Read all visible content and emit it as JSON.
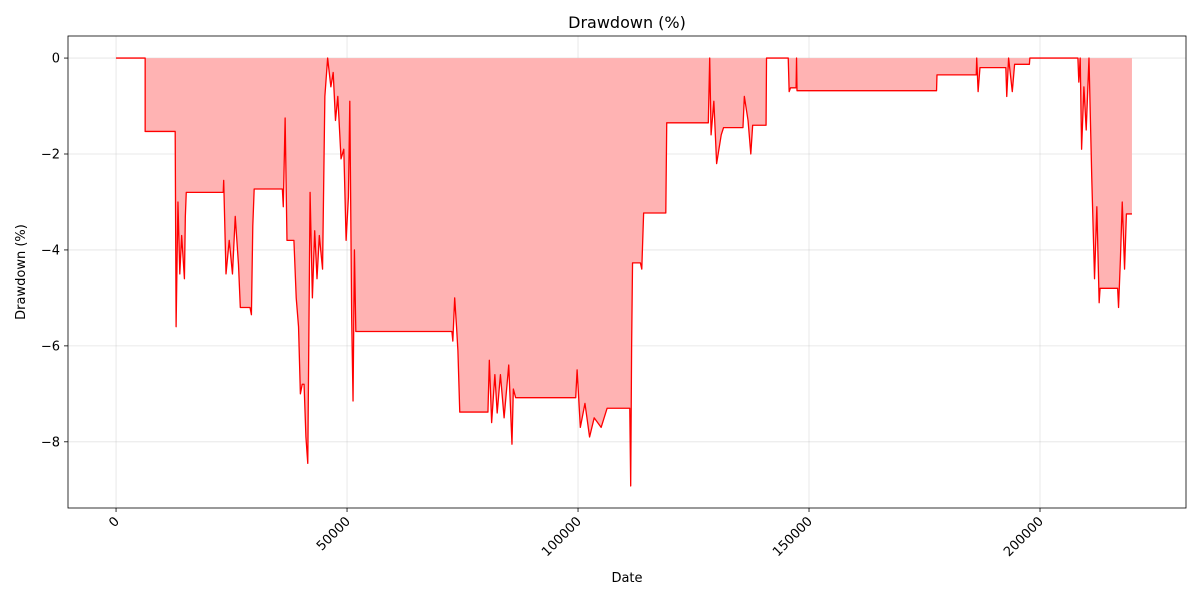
{
  "chart_data": {
    "type": "area",
    "title": "Drawdown (%)",
    "x_label": "Date",
    "y_label": "Drawdown (%)",
    "xlim": [
      -10400,
      231600
    ],
    "ylim": [
      -9.38,
      0.46
    ],
    "xticks": [
      0,
      50000,
      100000,
      150000,
      200000
    ],
    "yticks": [
      {
        "value": -8,
        "label": "−8"
      },
      {
        "value": -6,
        "label": "−6"
      },
      {
        "value": -4,
        "label": "−4"
      },
      {
        "value": -2,
        "label": "−2"
      },
      0
    ],
    "grid": true,
    "color": "#ff0000",
    "fill_color": "#ffb3b3",
    "x": [
      0,
      6300,
      6300,
      12800,
      13000,
      13400,
      13800,
      14200,
      14800,
      15000,
      15200,
      23200,
      23300,
      23800,
      24500,
      25200,
      25800,
      26500,
      26900,
      29000,
      29300,
      29600,
      29900,
      36000,
      36200,
      36600,
      37000,
      38500,
      39000,
      39500,
      39900,
      40300,
      40700,
      41100,
      41500,
      42000,
      42500,
      43000,
      43500,
      44000,
      44700,
      45200,
      45800,
      46500,
      47000,
      47500,
      48000,
      48700,
      49300,
      49800,
      50300,
      50600,
      51000,
      51300,
      51600,
      51900,
      72700,
      72900,
      73300,
      73700,
      74000,
      74400,
      80500,
      80800,
      81300,
      82000,
      82500,
      83200,
      84000,
      85000,
      85700,
      86000,
      86500,
      99500,
      99800,
      100500,
      101500,
      102500,
      103500,
      105000,
      106300,
      111200,
      111400,
      111600,
      111800,
      113500,
      113800,
      114200,
      119000,
      119200,
      128200,
      128500,
      128800,
      129400,
      130000,
      131000,
      131500,
      135700,
      136000,
      136800,
      137400,
      137800,
      140700,
      140800,
      145500,
      145700,
      146000,
      147200,
      147300,
      147400,
      177600,
      177700,
      186200,
      186300,
      186600,
      187000,
      192600,
      192800,
      193200,
      194000,
      194500,
      197700,
      197800,
      208200,
      208400,
      208700,
      209000,
      209500,
      210000,
      210600,
      211200,
      211800,
      212300,
      212800,
      213000,
      216800,
      217000,
      217400,
      217800,
      218300,
      218700,
      219900
    ],
    "values": [
      0,
      0,
      -1.53,
      -1.53,
      -5.6,
      -3.0,
      -4.5,
      -3.7,
      -4.6,
      -3.3,
      -2.8,
      -2.8,
      -2.55,
      -4.5,
      -3.8,
      -4.5,
      -3.3,
      -4.3,
      -5.2,
      -5.2,
      -5.35,
      -3.5,
      -2.73,
      -2.73,
      -3.1,
      -1.25,
      -3.8,
      -3.8,
      -5.0,
      -5.6,
      -7.0,
      -6.8,
      -6.8,
      -7.9,
      -8.45,
      -2.8,
      -5.0,
      -3.6,
      -4.6,
      -3.7,
      -4.4,
      -0.8,
      0,
      -0.6,
      -0.3,
      -1.3,
      -0.8,
      -2.1,
      -1.9,
      -3.8,
      -2.9,
      -0.9,
      -5.4,
      -7.15,
      -4.0,
      -5.7,
      -5.7,
      -5.9,
      -5.0,
      -5.6,
      -6.1,
      -7.38,
      -7.38,
      -6.3,
      -7.6,
      -6.6,
      -7.4,
      -6.6,
      -7.5,
      -6.4,
      -8.05,
      -6.9,
      -7.08,
      -7.08,
      -6.5,
      -7.7,
      -7.2,
      -7.9,
      -7.5,
      -7.7,
      -7.3,
      -7.3,
      -8.92,
      -6.0,
      -4.27,
      -4.27,
      -4.4,
      -3.23,
      -3.23,
      -1.35,
      -1.35,
      0,
      -1.6,
      -0.9,
      -2.2,
      -1.6,
      -1.45,
      -1.45,
      -0.8,
      -1.3,
      -2.0,
      -1.4,
      -1.4,
      0,
      0,
      -0.7,
      -0.62,
      -0.62,
      0,
      -0.68,
      -0.68,
      -0.35,
      -0.35,
      0,
      -0.7,
      -0.2,
      -0.2,
      -0.8,
      0,
      -0.7,
      -0.13,
      -0.13,
      0,
      0,
      -0.5,
      0,
      -1.9,
      -0.6,
      -1.5,
      0,
      -2.5,
      -4.6,
      -3.1,
      -5.1,
      -4.8,
      -4.8,
      -5.2,
      -4.2,
      -3.0,
      -4.4,
      -3.25,
      -3.25
    ]
  }
}
